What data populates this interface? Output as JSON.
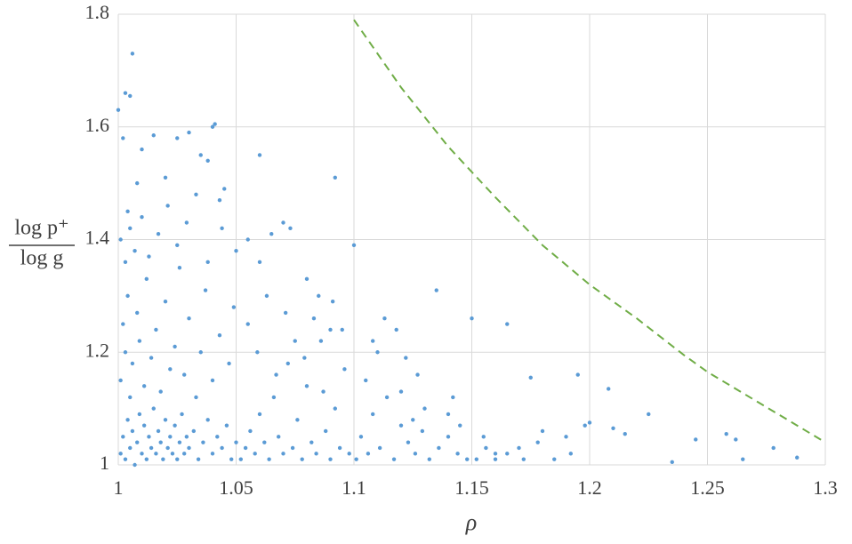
{
  "chart_data": {
    "type": "scatter",
    "xlabel": "ρ",
    "ylabel_numerator": "log p⁺",
    "ylabel_denominator": "log g",
    "xlim": [
      1,
      1.3
    ],
    "xticks": [
      1,
      1.05,
      1.1,
      1.15,
      1.2,
      1.25,
      1.3
    ],
    "ylim": [
      1,
      1.8
    ],
    "yticks": [
      1,
      1.2,
      1.4,
      1.6,
      1.8
    ],
    "grid": true,
    "series": [
      {
        "color": "#5b9bd5",
        "style": "dots",
        "x": [
          1.001,
          1.002,
          1.003,
          1.004,
          1.005,
          1.006,
          1.007,
          1.008,
          1.009,
          1.01,
          1.011,
          1.012,
          1.013,
          1.014,
          1.015,
          1.016,
          1.017,
          1.018,
          1.019,
          1.02,
          1.021,
          1.022,
          1.023,
          1.024,
          1.025,
          1.026,
          1.027,
          1.028,
          1.029,
          1.03,
          1.032,
          1.034,
          1.036,
          1.038,
          1.04,
          1.042,
          1.044,
          1.046,
          1.048,
          1.05,
          1.001,
          1.002,
          1.003,
          1.004,
          1.005,
          1.006,
          1.008,
          1.009,
          1.011,
          1.012,
          1.014,
          1.016,
          1.018,
          1.02,
          1.022,
          1.024,
          1.026,
          1.028,
          1.03,
          1.033,
          1.035,
          1.037,
          1.04,
          1.043,
          1.047,
          1.049,
          1.001,
          1.003,
          1.005,
          1.007,
          1.01,
          1.013,
          1.017,
          1.021,
          1.025,
          1.029,
          1.033,
          1.038,
          1.044,
          1.05,
          1.052,
          1.054,
          1.056,
          1.058,
          1.06,
          1.062,
          1.064,
          1.066,
          1.068,
          1.07,
          1.072,
          1.074,
          1.076,
          1.078,
          1.08,
          1.082,
          1.084,
          1.086,
          1.088,
          1.09,
          1.092,
          1.094,
          1.096,
          1.098,
          1.055,
          1.059,
          1.063,
          1.067,
          1.071,
          1.075,
          1.079,
          1.083,
          1.087,
          1.091,
          1.095,
          1.101,
          1.103,
          1.106,
          1.108,
          1.111,
          1.114,
          1.117,
          1.12,
          1.123,
          1.126,
          1.129,
          1.132,
          1.136,
          1.14,
          1.144,
          1.148,
          1.118,
          1.122,
          1.108,
          1.127,
          1.142,
          1.113,
          1.152,
          1.156,
          1.16,
          1.165,
          1.172,
          1.178,
          1.185,
          1.192,
          1.0,
          1.003,
          1.005,
          1.006,
          1.04,
          1.041,
          1.06,
          1.092,
          1.038,
          1.03,
          1.015,
          1.1,
          1.135,
          1.15,
          1.165,
          1.195,
          1.208,
          1.175,
          1.225,
          1.245,
          1.258,
          1.262,
          1.265,
          1.278,
          1.288,
          1.235,
          1.2,
          1.198,
          1.21,
          1.215,
          1.19,
          1.18,
          1.17,
          1.16,
          1.155,
          1.145,
          1.14,
          1.13,
          1.12,
          1.125,
          1.11,
          1.105,
          1.09,
          1.085,
          1.08,
          1.07,
          1.073,
          1.065,
          1.06,
          1.055,
          1.045,
          1.043,
          1.035,
          1.025,
          1.02,
          1.01,
          1.008,
          1.002,
          1.004
        ],
        "values": [
          1.02,
          1.05,
          1.01,
          1.08,
          1.03,
          1.06,
          1.0,
          1.04,
          1.09,
          1.02,
          1.07,
          1.01,
          1.05,
          1.03,
          1.1,
          1.02,
          1.06,
          1.04,
          1.01,
          1.08,
          1.03,
          1.05,
          1.02,
          1.07,
          1.01,
          1.04,
          1.09,
          1.02,
          1.05,
          1.03,
          1.06,
          1.01,
          1.04,
          1.08,
          1.02,
          1.05,
          1.03,
          1.07,
          1.01,
          1.04,
          1.15,
          1.25,
          1.2,
          1.3,
          1.12,
          1.18,
          1.27,
          1.22,
          1.14,
          1.33,
          1.19,
          1.24,
          1.13,
          1.29,
          1.17,
          1.21,
          1.35,
          1.16,
          1.26,
          1.12,
          1.2,
          1.31,
          1.15,
          1.23,
          1.18,
          1.28,
          1.4,
          1.36,
          1.42,
          1.38,
          1.44,
          1.37,
          1.41,
          1.46,
          1.39,
          1.43,
          1.48,
          1.36,
          1.42,
          1.38,
          1.01,
          1.03,
          1.06,
          1.02,
          1.09,
          1.04,
          1.01,
          1.12,
          1.05,
          1.02,
          1.18,
          1.03,
          1.08,
          1.01,
          1.14,
          1.04,
          1.02,
          1.22,
          1.06,
          1.01,
          1.1,
          1.03,
          1.17,
          1.02,
          1.25,
          1.2,
          1.3,
          1.16,
          1.27,
          1.22,
          1.19,
          1.26,
          1.13,
          1.29,
          1.24,
          1.01,
          1.05,
          1.02,
          1.09,
          1.03,
          1.12,
          1.01,
          1.07,
          1.04,
          1.02,
          1.06,
          1.01,
          1.03,
          1.05,
          1.02,
          1.01,
          1.24,
          1.19,
          1.22,
          1.16,
          1.12,
          1.26,
          1.01,
          1.03,
          1.01,
          1.02,
          1.01,
          1.04,
          1.01,
          1.02,
          1.63,
          1.66,
          1.655,
          1.73,
          1.6,
          1.605,
          1.55,
          1.51,
          1.54,
          1.59,
          1.585,
          1.39,
          1.31,
          1.26,
          1.25,
          1.16,
          1.135,
          1.155,
          1.09,
          1.045,
          1.055,
          1.045,
          1.01,
          1.03,
          1.013,
          1.005,
          1.075,
          1.07,
          1.065,
          1.055,
          1.05,
          1.06,
          1.03,
          1.02,
          1.05,
          1.07,
          1.09,
          1.1,
          1.13,
          1.08,
          1.2,
          1.15,
          1.24,
          1.3,
          1.33,
          1.43,
          1.42,
          1.41,
          1.36,
          1.4,
          1.49,
          1.47,
          1.55,
          1.58,
          1.51,
          1.56,
          1.5,
          1.58,
          1.45
        ]
      },
      {
        "color": "#70ad47",
        "style": "dashed",
        "x": [
          1.1,
          1.12,
          1.14,
          1.15,
          1.16,
          1.18,
          1.2,
          1.22,
          1.24,
          1.25,
          1.26,
          1.28,
          1.3
        ],
        "values": [
          1.79,
          1.67,
          1.565,
          1.52,
          1.475,
          1.39,
          1.32,
          1.26,
          1.195,
          1.165,
          1.14,
          1.09,
          1.04
        ]
      }
    ]
  }
}
